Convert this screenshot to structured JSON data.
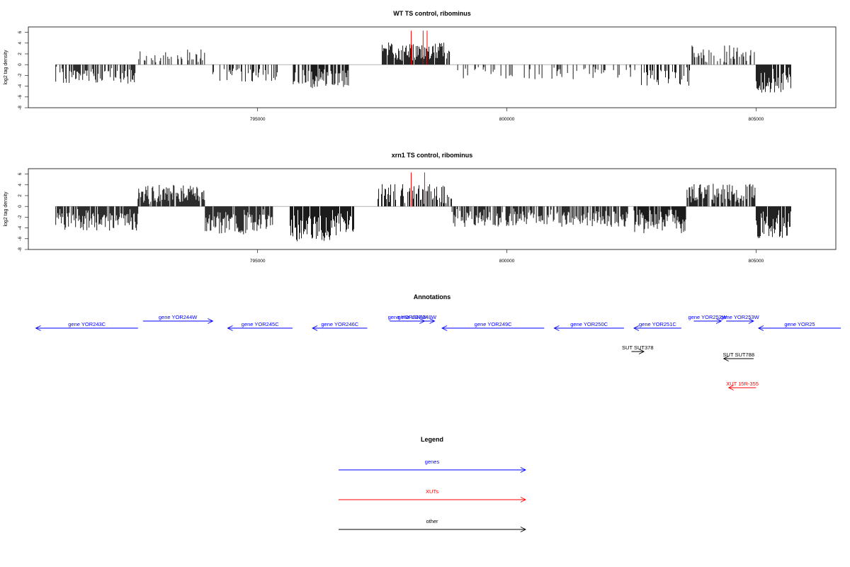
{
  "chart_data": [
    {
      "type": "bar",
      "title": "WT TS control, ribominus",
      "ylabel": "log2 tag density",
      "xlim": [
        790400,
        806600
      ],
      "ylim": [
        -8,
        7
      ],
      "yticks": [
        6,
        4,
        2,
        0,
        -2,
        -4,
        -6,
        -8
      ],
      "xticks": [
        795000,
        800000,
        805000
      ],
      "color": "#000000",
      "highlight_color": "#ff0000",
      "highlight_x": [
        798080,
        798320,
        798400
      ],
      "highlight_y": 6.3,
      "segments": [
        {
          "start": 790950,
          "end": 792550,
          "sign": -1,
          "amp": 3.6,
          "density": 0.55
        },
        {
          "start": 792600,
          "end": 793950,
          "sign": 1,
          "amp": 2.9,
          "density": 0.35
        },
        {
          "start": 794100,
          "end": 795400,
          "sign": -1,
          "amp": 3.2,
          "density": 0.4
        },
        {
          "start": 795700,
          "end": 796850,
          "sign": -1,
          "amp": 4.4,
          "density": 0.7
        },
        {
          "start": 797500,
          "end": 798850,
          "sign": 1,
          "amp": 4.2,
          "density": 0.9
        },
        {
          "start": 798900,
          "end": 802600,
          "sign": -1,
          "amp": 2.8,
          "density": 0.25
        },
        {
          "start": 802700,
          "end": 803700,
          "sign": -1,
          "amp": 4.0,
          "density": 0.5
        },
        {
          "start": 803700,
          "end": 805000,
          "sign": 1,
          "amp": 3.6,
          "density": 0.45
        },
        {
          "start": 805000,
          "end": 805700,
          "sign": -1,
          "amp": 5.2,
          "density": 0.8
        }
      ]
    },
    {
      "type": "bar",
      "title": "xrn1 TS control, ribominus",
      "ylabel": "log2 tag density",
      "xlim": [
        790400,
        806600
      ],
      "ylim": [
        -8,
        7
      ],
      "yticks": [
        6,
        4,
        2,
        0,
        -2,
        -4,
        -6,
        -8
      ],
      "xticks": [
        795000,
        800000,
        805000
      ],
      "color": "#000000",
      "highlight_color": "#ff0000",
      "highlight_x": [
        798080,
        798350
      ],
      "highlight_y": 6.3,
      "segments": [
        {
          "start": 790950,
          "end": 792600,
          "sign": -1,
          "amp": 4.5,
          "density": 0.85
        },
        {
          "start": 792600,
          "end": 793950,
          "sign": 1,
          "amp": 4.0,
          "density": 0.9
        },
        {
          "start": 793950,
          "end": 795300,
          "sign": -1,
          "amp": 5.2,
          "density": 0.85
        },
        {
          "start": 795650,
          "end": 796950,
          "sign": -1,
          "amp": 6.5,
          "density": 0.95
        },
        {
          "start": 797400,
          "end": 798900,
          "sign": 1,
          "amp": 4.2,
          "density": 0.6
        },
        {
          "start": 798900,
          "end": 802450,
          "sign": -1,
          "amp": 3.8,
          "density": 0.75
        },
        {
          "start": 802550,
          "end": 803600,
          "sign": -1,
          "amp": 5.0,
          "density": 0.85
        },
        {
          "start": 803600,
          "end": 805000,
          "sign": 1,
          "amp": 4.2,
          "density": 0.8
        },
        {
          "start": 805000,
          "end": 805700,
          "sign": -1,
          "amp": 6.0,
          "density": 0.95
        }
      ]
    }
  ],
  "annotations": {
    "title": "Annotations",
    "features": [
      {
        "label": "gene YOR243C",
        "start": 790550,
        "end": 792600,
        "dir": "left",
        "row": 1,
        "color": "#0000ff"
      },
      {
        "label": "gene YOR244W",
        "start": 792700,
        "end": 794100,
        "dir": "right",
        "row": 0,
        "color": "#0000ff"
      },
      {
        "label": "gene YOR245C",
        "start": 794400,
        "end": 795700,
        "dir": "left",
        "row": 1,
        "color": "#0000ff"
      },
      {
        "label": "gene YOR246C",
        "start": 796100,
        "end": 797200,
        "dir": "left",
        "row": 1,
        "color": "#0000ff"
      },
      {
        "label": "gene YOR247W",
        "start": 797650,
        "end": 798350,
        "dir": "right",
        "row": 0,
        "color": "#0000ff"
      },
      {
        "label": "gene YOR248W",
        "start": 797850,
        "end": 798550,
        "dir": "right",
        "row": 0,
        "color": "#0000ff"
      },
      {
        "label": "gene YOR249C",
        "start": 798700,
        "end": 800750,
        "dir": "left",
        "row": 1,
        "color": "#0000ff"
      },
      {
        "label": "gene YOR250C",
        "start": 800950,
        "end": 802350,
        "dir": "left",
        "row": 1,
        "color": "#0000ff"
      },
      {
        "label": "gene YOR251C",
        "start": 802550,
        "end": 803500,
        "dir": "left",
        "row": 1,
        "color": "#0000ff"
      },
      {
        "label": "gene YOR252W",
        "start": 803750,
        "end": 804300,
        "dir": "right",
        "row": 0,
        "color": "#0000ff"
      },
      {
        "label": "gene YOR253W",
        "start": 804400,
        "end": 804950,
        "dir": "right",
        "row": 0,
        "color": "#0000ff"
      },
      {
        "label": "gene YOR25",
        "start": 805050,
        "end": 806700,
        "dir": "left",
        "row": 1,
        "color": "#0000ff"
      },
      {
        "label": "SUT SUT378",
        "start": 802500,
        "end": 802750,
        "dir": "right",
        "row": 2,
        "color": "#000000"
      },
      {
        "label": "SUT SUT788",
        "start": 804350,
        "end": 804950,
        "dir": "left",
        "row": 3,
        "color": "#000000"
      },
      {
        "label": "XUT 15R-355",
        "start": 804450,
        "end": 805000,
        "dir": "left",
        "row": 4,
        "color": "#ff0000"
      }
    ]
  },
  "legend": {
    "title": "Legend",
    "items": [
      {
        "label": "genes",
        "color": "#0000ff"
      },
      {
        "label": "XUTs",
        "color": "#ff0000"
      },
      {
        "label": "other",
        "color": "#000000"
      }
    ]
  }
}
